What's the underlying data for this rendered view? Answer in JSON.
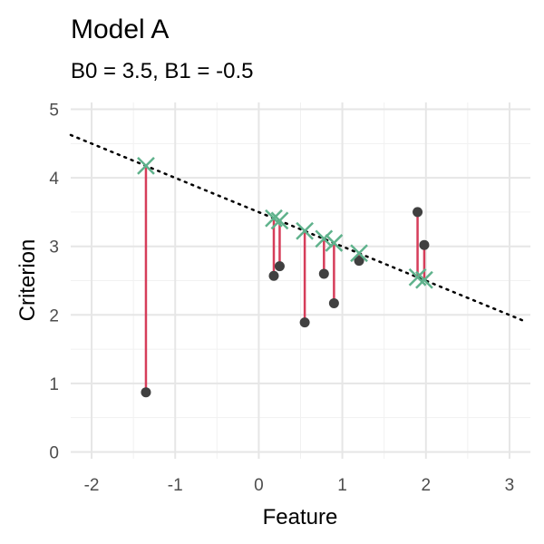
{
  "chart_data": {
    "type": "scatter",
    "title": "Model A",
    "subtitle": "B0 = 3.5, B1 = -0.5",
    "xlabel": "Feature",
    "ylabel": "Criterion",
    "xlim": [
      -2.25,
      3.25
    ],
    "ylim": [
      -0.1,
      5.1
    ],
    "x_ticks": [
      -2,
      -1,
      0,
      1,
      2,
      3
    ],
    "y_ticks": [
      0,
      1,
      2,
      3,
      4,
      5
    ],
    "grid": true,
    "legend": "none",
    "model_line": {
      "intercept": 3.5,
      "slope": -0.5,
      "style": "dotted"
    },
    "points": [
      {
        "x": -1.35,
        "y": 0.87
      },
      {
        "x": 0.18,
        "y": 2.57
      },
      {
        "x": 0.25,
        "y": 2.71
      },
      {
        "x": 0.55,
        "y": 1.89
      },
      {
        "x": 0.78,
        "y": 2.6
      },
      {
        "x": 0.9,
        "y": 2.17
      },
      {
        "x": 1.2,
        "y": 2.79
      },
      {
        "x": 1.9,
        "y": 3.5
      },
      {
        "x": 1.98,
        "y": 3.02
      }
    ],
    "colors": {
      "observed": "#404040",
      "predicted": "#5fb28c",
      "residual": "#d63d5a",
      "model_line": "#000000",
      "grid_major": "#e6e6e6",
      "grid_minor": "#f1f1f1"
    }
  }
}
